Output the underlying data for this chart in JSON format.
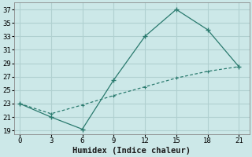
{
  "line1_x": [
    0,
    3,
    6,
    9,
    12,
    15,
    18,
    21
  ],
  "line1_y": [
    23,
    21,
    19.2,
    26.5,
    33,
    37,
    34,
    28.5
  ],
  "line2_x": [
    0,
    3,
    6,
    9,
    12,
    15,
    18,
    21
  ],
  "line2_y": [
    23,
    21.5,
    22.8,
    24.2,
    25.5,
    26.8,
    27.8,
    28.5
  ],
  "color": "#2a7a6e",
  "xlabel": "Humidex (Indice chaleur)",
  "xlim": [
    -0.5,
    22
  ],
  "ylim": [
    18.5,
    38
  ],
  "xticks": [
    0,
    3,
    6,
    9,
    12,
    15,
    18,
    21
  ],
  "yticks": [
    19,
    21,
    23,
    25,
    27,
    29,
    31,
    33,
    35,
    37
  ],
  "bg_color": "#cce8e8",
  "grid_color": "#b0d0d0",
  "tick_fontsize": 6.5,
  "xlabel_fontsize": 7.5
}
